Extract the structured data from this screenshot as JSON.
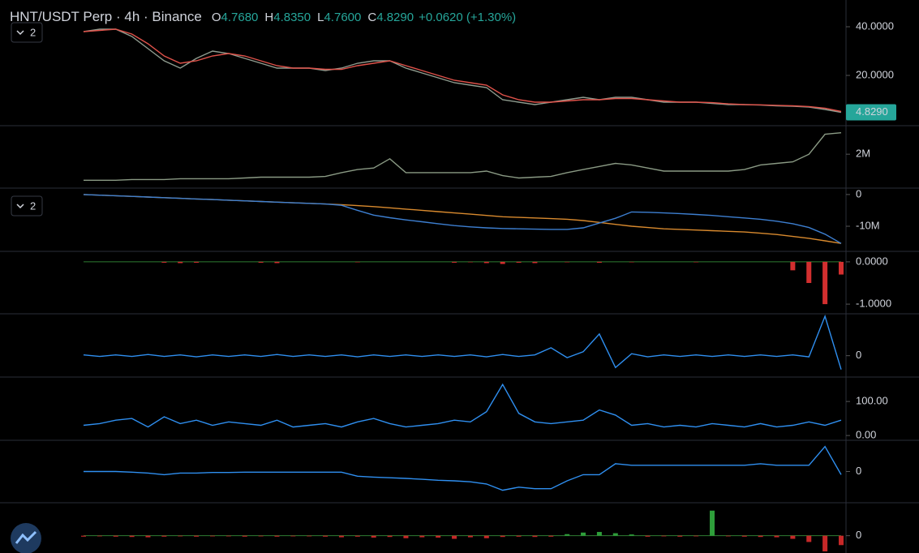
{
  "chart_data": [
    {
      "type": "line",
      "title": "HNT/USDT Perp · 4h · Binance",
      "ohlc": [
        [
          "O",
          "4.7680"
        ],
        [
          "H",
          "4.8350"
        ],
        [
          "L",
          "4.7600"
        ],
        [
          "C",
          "4.8290"
        ]
      ],
      "change": "+0.0620 (+1.30%)",
      "collapsed": "2",
      "last_price_label": "4.8290",
      "ylim": [
        0,
        51
      ],
      "yticks": [
        {
          "value": 40,
          "label": "40.0000"
        },
        {
          "value": 20,
          "label": "20.0000"
        }
      ],
      "series": [
        {
          "color": "#8f9c8f",
          "values": [
            38,
            39,
            39,
            36,
            31,
            26,
            23,
            27,
            30,
            29,
            27,
            25,
            23,
            23,
            23,
            22,
            23,
            25,
            26,
            26,
            23,
            21,
            19,
            17,
            16,
            15,
            10,
            9,
            8,
            9,
            10,
            11,
            10,
            11,
            11,
            10,
            9,
            9,
            9,
            8.5,
            8,
            8,
            7.8,
            7.5,
            7.3,
            7,
            6,
            4.83
          ]
        },
        {
          "color": "#e0524a",
          "values": [
            38,
            38.5,
            39,
            37,
            33,
            28,
            25,
            26,
            28,
            29,
            28,
            26,
            24,
            23,
            23,
            22.5,
            22.5,
            24,
            25,
            26,
            24,
            22,
            20,
            18,
            17,
            16,
            12,
            10,
            9,
            9,
            9.5,
            10,
            10,
            10.5,
            10.5,
            10,
            9.5,
            9,
            9,
            8.8,
            8.3,
            8,
            7.9,
            7.7,
            7.5,
            7.2,
            6.5,
            5.2
          ]
        }
      ]
    },
    {
      "type": "line",
      "ylim": [
        0,
        3.7
      ],
      "yticks": [
        {
          "value": 2,
          "label": "2M"
        }
      ],
      "series": [
        {
          "color": "#8a9a84",
          "values": [
            0.3,
            0.3,
            0.3,
            0.35,
            0.35,
            0.35,
            0.4,
            0.4,
            0.4,
            0.4,
            0.45,
            0.5,
            0.5,
            0.5,
            0.5,
            0.55,
            0.8,
            1.0,
            1.1,
            1.7,
            0.8,
            0.8,
            0.8,
            0.8,
            0.8,
            0.9,
            0.6,
            0.45,
            0.5,
            0.55,
            0.8,
            1.0,
            1.2,
            1.4,
            1.3,
            1.1,
            0.9,
            0.9,
            0.9,
            0.9,
            0.9,
            1.0,
            1.3,
            1.4,
            1.5,
            2.0,
            3.3,
            3.4
          ]
        }
      ]
    },
    {
      "type": "line",
      "collapsed": "2",
      "ylim": [
        -17.4,
        1.5
      ],
      "yticks": [
        0,
        {
          "value": -10,
          "label": "-10M"
        }
      ],
      "series": [
        {
          "color": "#d98a2e",
          "values": [
            0,
            -0.2,
            -0.4,
            -0.6,
            -0.8,
            -1.0,
            -1.2,
            -1.4,
            -1.6,
            -1.8,
            -2.0,
            -2.2,
            -2.4,
            -2.6,
            -2.8,
            -3.0,
            -3.2,
            -3.5,
            -3.8,
            -4.2,
            -4.6,
            -5.0,
            -5.4,
            -5.8,
            -6.2,
            -6.6,
            -7.0,
            -7.2,
            -7.4,
            -7.6,
            -7.8,
            -8.2,
            -8.8,
            -9.4,
            -10.0,
            -10.4,
            -10.8,
            -11.0,
            -11.2,
            -11.4,
            -11.6,
            -11.8,
            -12.2,
            -12.6,
            -13.2,
            -13.8,
            -14.6,
            -15.4
          ]
        },
        {
          "color": "#3d7fd1",
          "values": [
            0,
            -0.2,
            -0.4,
            -0.6,
            -0.8,
            -1.0,
            -1.2,
            -1.4,
            -1.6,
            -1.8,
            -2.0,
            -2.2,
            -2.4,
            -2.6,
            -2.8,
            -3.0,
            -3.4,
            -5.0,
            -6.5,
            -7.3,
            -8.0,
            -8.6,
            -9.2,
            -9.8,
            -10.2,
            -10.5,
            -10.7,
            -10.8,
            -10.9,
            -11.0,
            -11.0,
            -10.5,
            -9.0,
            -7.5,
            -5.5,
            -5.6,
            -5.8,
            -6.0,
            -6.3,
            -6.6,
            -7.0,
            -7.4,
            -7.8,
            -8.4,
            -9.2,
            -10.4,
            -12.5,
            -15.4
          ]
        }
      ]
    },
    {
      "type": "bar",
      "ylim": [
        -1.19,
        0.19
      ],
      "yticks": [
        {
          "value": 0,
          "label": "0.0000"
        },
        {
          "value": -1,
          "label": "-1.0000"
        }
      ],
      "up_color": "#26a69a",
      "down_color": "#d32f2f",
      "values": [
        0,
        0,
        0,
        0,
        0,
        -0.02,
        -0.03,
        -0.02,
        0,
        0,
        0,
        -0.02,
        -0.03,
        0,
        0,
        0,
        0,
        -0.01,
        0,
        0,
        0,
        0,
        0,
        -0.02,
        -0.01,
        -0.03,
        -0.05,
        -0.02,
        -0.03,
        0,
        -0.01,
        0,
        -0.02,
        0,
        -0.01,
        0,
        0,
        0,
        -0.01,
        0,
        0,
        0,
        0,
        0,
        -0.2,
        -0.5,
        -1.0,
        -0.3
      ]
    },
    {
      "type": "line",
      "ylim": [
        -0.5,
        1
      ],
      "yticks": [
        0
      ],
      "series": [
        {
          "color": "#2f8ff0",
          "values": [
            0.02,
            -0.02,
            0.02,
            -0.02,
            0.03,
            -0.02,
            0.02,
            -0.03,
            0.02,
            -0.02,
            0.02,
            -0.02,
            0.03,
            -0.02,
            0.02,
            -0.02,
            0.02,
            -0.03,
            0.02,
            -0.02,
            0.02,
            -0.02,
            0.02,
            -0.02,
            0.02,
            -0.03,
            0.03,
            -0.02,
            0.02,
            0.2,
            -0.05,
            0.1,
            0.55,
            -0.3,
            0.05,
            -0.03,
            0.02,
            -0.02,
            0.02,
            -0.02,
            0.02,
            -0.02,
            0.02,
            -0.02,
            0.02,
            -0.03,
            1.0,
            -0.35
          ]
        }
      ]
    },
    {
      "type": "line",
      "ylim": [
        -14,
        167
      ],
      "yticks": [
        {
          "value": 100,
          "label": "100.00"
        },
        {
          "value": 0,
          "label": "0.00"
        }
      ],
      "series": [
        {
          "color": "#2f8ff0",
          "values": [
            30,
            35,
            45,
            50,
            25,
            55,
            35,
            45,
            30,
            40,
            35,
            30,
            45,
            25,
            30,
            35,
            25,
            40,
            50,
            35,
            25,
            30,
            35,
            45,
            40,
            70,
            150,
            65,
            40,
            35,
            40,
            45,
            75,
            60,
            30,
            35,
            25,
            30,
            25,
            35,
            30,
            25,
            35,
            25,
            30,
            40,
            30,
            45
          ]
        }
      ]
    },
    {
      "type": "line",
      "ylim": [
        -1,
        1
      ],
      "yticks": [
        0
      ],
      "series": [
        {
          "color": "#2f8ff0",
          "values": [
            0,
            0,
            0,
            -0.02,
            -0.05,
            -0.1,
            -0.05,
            -0.05,
            -0.03,
            -0.03,
            -0.02,
            -0.02,
            -0.02,
            -0.02,
            -0.02,
            -0.02,
            -0.02,
            -0.15,
            -0.18,
            -0.2,
            -0.22,
            -0.25,
            -0.28,
            -0.3,
            -0.33,
            -0.4,
            -0.6,
            -0.5,
            -0.55,
            -0.55,
            -0.3,
            -0.1,
            -0.1,
            0.25,
            0.2,
            0.2,
            0.2,
            0.2,
            0.2,
            0.2,
            0.2,
            0.2,
            0.25,
            0.2,
            0.2,
            0.2,
            0.8,
            -0.1
          ]
        }
      ]
    },
    {
      "type": "bar",
      "ylim": [
        -0.5,
        1
      ],
      "yticks": [
        0
      ],
      "up_color": "#2e9e3a",
      "down_color": "#c62828",
      "values": [
        -0.03,
        -0.02,
        -0.03,
        -0.04,
        -0.05,
        -0.03,
        -0.02,
        -0.03,
        -0.02,
        -0.02,
        -0.03,
        -0.02,
        -0.03,
        -0.02,
        -0.02,
        -0.03,
        -0.05,
        -0.03,
        -0.06,
        -0.04,
        -0.08,
        -0.05,
        -0.06,
        -0.1,
        -0.05,
        -0.08,
        -0.04,
        -0.03,
        -0.04,
        -0.03,
        0.05,
        0.1,
        0.12,
        0.08,
        0.04,
        -0.03,
        -0.02,
        -0.03,
        -0.02,
        0.8,
        -0.02,
        -0.03,
        -0.04,
        -0.05,
        -0.1,
        -0.2,
        -0.5,
        -0.3
      ]
    }
  ]
}
